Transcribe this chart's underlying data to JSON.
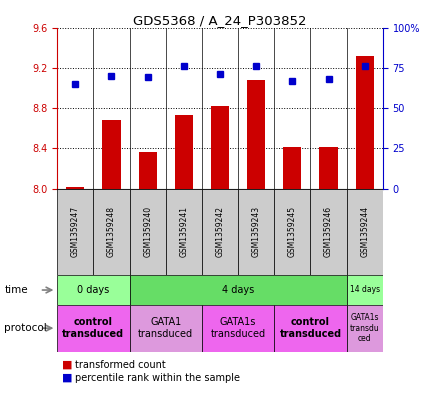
{
  "title": "GDS5368 / A_24_P303852",
  "samples": [
    "GSM1359247",
    "GSM1359248",
    "GSM1359240",
    "GSM1359241",
    "GSM1359242",
    "GSM1359243",
    "GSM1359245",
    "GSM1359246",
    "GSM1359244"
  ],
  "transformed_counts": [
    8.02,
    8.68,
    8.36,
    8.73,
    8.82,
    9.08,
    8.41,
    8.41,
    9.32
  ],
  "percentile_ranks": [
    65,
    70,
    69,
    76,
    71,
    76,
    67,
    68,
    76
  ],
  "ylim": [
    8.0,
    9.6
  ],
  "y_ticks": [
    8.0,
    8.4,
    8.8,
    9.2,
    9.6
  ],
  "y_right_ticks": [
    0,
    25,
    50,
    75,
    100
  ],
  "bar_color": "#cc0000",
  "dot_color": "#0000cc",
  "plot_bg": "#ffffff",
  "grid_color": "#000000",
  "time_groups": [
    {
      "label": "0 days",
      "start": 0,
      "end": 2,
      "color": "#99ff99"
    },
    {
      "label": "4 days",
      "start": 2,
      "end": 8,
      "color": "#66dd66"
    },
    {
      "label": "14 days",
      "start": 8,
      "end": 9,
      "color": "#99ff99"
    }
  ],
  "protocol_groups": [
    {
      "label": "control\ntransduced",
      "start": 0,
      "end": 2,
      "color": "#ee66ee",
      "bold": true
    },
    {
      "label": "GATA1\ntransduced",
      "start": 2,
      "end": 4,
      "color": "#dd99dd",
      "bold": false
    },
    {
      "label": "GATA1s\ntransduced",
      "start": 4,
      "end": 6,
      "color": "#ee66ee",
      "bold": false
    },
    {
      "label": "control\ntransduced",
      "start": 6,
      "end": 8,
      "color": "#ee66ee",
      "bold": true
    },
    {
      "label": "GATA1s\ntransdu\nced",
      "start": 8,
      "end": 9,
      "color": "#dd99dd",
      "bold": false
    }
  ],
  "header_bg": "#cccccc",
  "left_label_color": "#cc0000",
  "right_label_color": "#0000cc"
}
